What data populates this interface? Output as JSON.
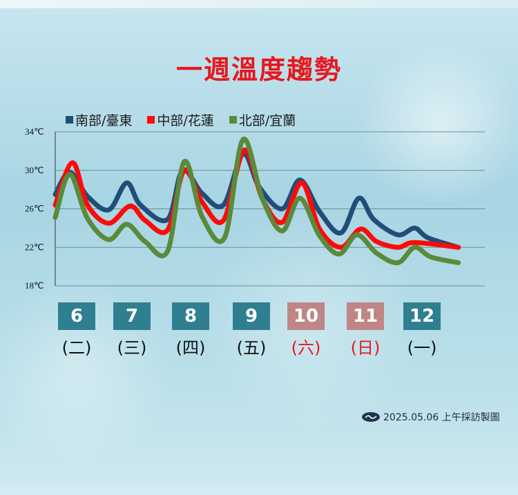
{
  "title": "一週溫度趨勢",
  "colors": {
    "title": "#e8171d",
    "weekday_box": "#2f7f90",
    "weekend_box": "#c08686",
    "weekend_text": "#e8171d"
  },
  "days": [
    {
      "num": "6",
      "weekday": "(二)",
      "weekend": false
    },
    {
      "num": "7",
      "weekday": "(三)",
      "weekend": false
    },
    {
      "num": "8",
      "weekday": "(四)",
      "weekend": false
    },
    {
      "num": "9",
      "weekday": "(五)",
      "weekend": false
    },
    {
      "num": "10",
      "weekday": "(六)",
      "weekend": true
    },
    {
      "num": "11",
      "weekday": "(日)",
      "weekend": true
    },
    {
      "num": "12",
      "weekday": "(一)",
      "weekend": false
    }
  ],
  "footer": {
    "logo_icon": "wave-logo-icon",
    "text": "2025.05.06 上午採訪製圖"
  },
  "chart_data": {
    "type": "line",
    "xlabel": "",
    "ylabel": "",
    "xlim": [
      5.63,
      13.09
    ],
    "ylim": [
      18,
      34
    ],
    "yticks": [
      34,
      30,
      26,
      22,
      18
    ],
    "ytick_labels": [
      "34℃",
      "30℃",
      "26℃",
      "22℃",
      "18℃"
    ],
    "grid": true,
    "legend": "top",
    "series": [
      {
        "name": "南部/臺東",
        "color": "#1f4e79",
        "x": [
          5.63,
          5.88,
          6.19,
          6.56,
          6.87,
          7.11,
          7.58,
          7.84,
          8.18,
          8.55,
          8.89,
          9.17,
          9.57,
          9.88,
          10.22,
          10.59,
          10.9,
          11.16,
          11.58,
          11.87,
          12.1,
          12.63
        ],
        "y": [
          27.5,
          29.8,
          27.3,
          25.9,
          28.7,
          26.4,
          24.9,
          30.0,
          27.6,
          26.4,
          31.7,
          28.3,
          26.0,
          29.0,
          25.7,
          23.5,
          27.1,
          24.9,
          23.3,
          24.0,
          23.0,
          22.0
        ]
      },
      {
        "name": "中部/花蓮",
        "color": "#ff0a0a",
        "x": [
          5.63,
          5.93,
          6.19,
          6.56,
          6.93,
          7.19,
          7.58,
          7.87,
          8.18,
          8.55,
          8.91,
          9.23,
          9.57,
          9.91,
          10.22,
          10.59,
          10.93,
          11.21,
          11.58,
          11.87,
          12.63
        ],
        "y": [
          26.4,
          30.8,
          26.4,
          24.5,
          26.3,
          24.8,
          23.8,
          30.0,
          26.7,
          24.8,
          32.1,
          27.0,
          24.6,
          28.7,
          23.9,
          22.0,
          23.9,
          22.6,
          22.0,
          22.5,
          22.0
        ]
      },
      {
        "name": "北部/宜蘭",
        "color": "#5a8a3a",
        "x": [
          5.63,
          5.88,
          6.19,
          6.56,
          6.87,
          7.19,
          7.58,
          7.87,
          8.18,
          8.57,
          8.89,
          9.23,
          9.57,
          9.88,
          10.22,
          10.56,
          10.87,
          11.21,
          11.58,
          11.87,
          12.15,
          12.63
        ],
        "y": [
          25.1,
          29.6,
          25.0,
          22.8,
          24.4,
          22.6,
          21.6,
          30.9,
          25.2,
          23.0,
          33.2,
          27.0,
          23.7,
          27.1,
          23.2,
          21.3,
          23.3,
          21.4,
          20.4,
          22.0,
          21.0,
          20.4
        ]
      }
    ]
  }
}
